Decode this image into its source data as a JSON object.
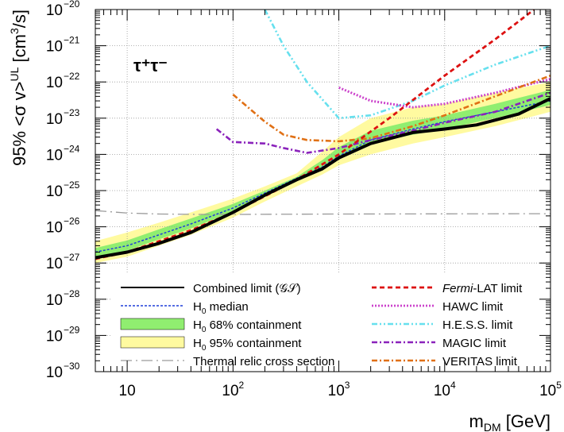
{
  "chart_data": {
    "type": "line",
    "title": "",
    "annotation": "τ⁺τ⁻",
    "xlabel": {
      "base": "m",
      "sub": "DM",
      "unit": "[GeV]"
    },
    "ylabel": {
      "prefix": "95% <σ v>",
      "sup": "UL",
      "unit_pre": "[cm",
      "unit_sup": "3",
      "unit_post": "/s]"
    },
    "xscale": "log",
    "yscale": "log",
    "xlim": [
      5,
      100000
    ],
    "ylim": [
      1e-30,
      1e-20
    ],
    "x_ticks": [
      {
        "value": 10,
        "base": "10",
        "exp": ""
      },
      {
        "value": 100,
        "base": "10",
        "exp": "2"
      },
      {
        "value": 1000,
        "base": "10",
        "exp": "3"
      },
      {
        "value": 10000,
        "base": "10",
        "exp": "4"
      },
      {
        "value": 100000,
        "base": "10",
        "exp": "5"
      }
    ],
    "y_ticks": [
      {
        "value": 1e-30,
        "base": "10",
        "exp": "−30"
      },
      {
        "value": 1e-29,
        "base": "10",
        "exp": "−29"
      },
      {
        "value": 1e-28,
        "base": "10",
        "exp": "−28"
      },
      {
        "value": 1e-27,
        "base": "10",
        "exp": "−27"
      },
      {
        "value": 1e-26,
        "base": "10",
        "exp": "−26"
      },
      {
        "value": 1e-25,
        "base": "10",
        "exp": "−25"
      },
      {
        "value": 1e-24,
        "base": "10",
        "exp": "−24"
      },
      {
        "value": 1e-23,
        "base": "10",
        "exp": "−23"
      },
      {
        "value": 1e-22,
        "base": "10",
        "exp": "−22"
      },
      {
        "value": 1e-21,
        "base": "10",
        "exp": "−21"
      },
      {
        "value": 1e-20,
        "base": "10",
        "exp": "−20"
      }
    ],
    "grid": true,
    "legend_position": "bottom",
    "legend": [
      {
        "key": "combined",
        "label": "Combined limit (𝒢𝒮)",
        "column": 0
      },
      {
        "key": "median",
        "label_base": "H",
        "label_sub": "0",
        "label_rest": " median",
        "column": 0
      },
      {
        "key": "band68",
        "label_base": "H",
        "label_sub": "0",
        "label_rest": " 68% containment",
        "column": 0
      },
      {
        "key": "band95",
        "label_base": "H",
        "label_sub": "0",
        "label_rest": " 95% containment",
        "column": 0
      },
      {
        "key": "thermal",
        "label": "Thermal relic cross section",
        "column": 0
      },
      {
        "key": "fermi",
        "label_italic": "Fermi",
        "label_rest": "-LAT limit",
        "column": 1
      },
      {
        "key": "hawc",
        "label": "HAWC limit",
        "column": 1
      },
      {
        "key": "hess",
        "label": "H.E.S.S. limit",
        "column": 1
      },
      {
        "key": "magic",
        "label": "MAGIC limit",
        "column": 1
      },
      {
        "key": "veritas",
        "label": "VERITAS limit",
        "column": 1
      }
    ],
    "styles": {
      "combined": {
        "color": "#000000",
        "width": 4,
        "dash": ""
      },
      "median": {
        "color": "#1f3fd8",
        "width": 1.5,
        "dash": "3,2"
      },
      "band68": {
        "color": "#90ee70"
      },
      "band95": {
        "color": "#fffaa0"
      },
      "thermal": {
        "color": "#9a9a9a",
        "width": 1.3,
        "dash": "14,5,2,5"
      },
      "fermi": {
        "color": "#dd1111",
        "width": 2.8,
        "dash": "6,4"
      },
      "hawc": {
        "color": "#cc44cc",
        "width": 3,
        "dash": "2,2"
      },
      "hess": {
        "color": "#66e0ee",
        "width": 2.6,
        "dash": "7,3,2,3,2,3"
      },
      "magic": {
        "color": "#8a22bb",
        "width": 2.6,
        "dash": "7,3,2,3"
      },
      "veritas": {
        "color": "#e07015",
        "width": 2.6,
        "dash": "7,3,2,3"
      }
    },
    "bands": {
      "band95": {
        "x": [
          5,
          10,
          20,
          40,
          100,
          200,
          400,
          700,
          1000,
          2000,
          5000,
          10000,
          30000,
          100000
        ],
        "lower": [
          1e-27,
          1.5e-27,
          3e-27,
          6e-27,
          1.8e-26,
          5e-26,
          1.3e-25,
          2.8e-25,
          5e-25,
          1e-24,
          2e-24,
          3e-24,
          6e-24,
          1.5e-23
        ],
        "upper": [
          4e-27,
          7e-27,
          1.3e-26,
          2.5e-26,
          6e-26,
          1.3e-25,
          3e-25,
          1.2e-24,
          3e-24,
          1e-23,
          2e-23,
          2.5e-23,
          5e-23,
          1e-22
        ]
      },
      "band68": {
        "x": [
          5,
          10,
          20,
          40,
          100,
          200,
          400,
          700,
          1000,
          2000,
          5000,
          10000,
          30000,
          100000
        ],
        "lower": [
          1.4e-27,
          2.2e-27,
          4.5e-27,
          9e-27,
          2.6e-26,
          7e-26,
          1.8e-25,
          4.5e-25,
          8e-25,
          2e-24,
          3.5e-24,
          5e-24,
          1e-23,
          2.3e-23
        ],
        "upper": [
          2.6e-27,
          4.2e-27,
          8.5e-27,
          1.7e-26,
          4.3e-26,
          1e-25,
          2.4e-25,
          7e-25,
          1.6e-24,
          4.5e-24,
          8.5e-24,
          1.2e-23,
          2.5e-23,
          6e-23
        ]
      }
    },
    "series": [
      {
        "key": "thermal",
        "x": [
          5,
          10,
          20,
          50,
          100,
          1000,
          100000
        ],
        "y": [
          2.8e-26,
          2.4e-26,
          2.25e-26,
          2.2e-26,
          2.2e-26,
          2.25e-26,
          2.3e-26
        ]
      },
      {
        "key": "median",
        "x": [
          5,
          10,
          20,
          40,
          100,
          200,
          400,
          700,
          1000,
          2000,
          5000,
          10000,
          30000,
          100000
        ],
        "y": [
          2e-27,
          3e-27,
          6e-27,
          1.2e-26,
          3.3e-26,
          8.5e-26,
          2.2e-25,
          4.5e-25,
          9e-25,
          2.5e-24,
          5e-24,
          8e-24,
          1.5e-23,
          3e-23
        ]
      },
      {
        "key": "hess",
        "x": [
          200,
          300,
          500,
          1000,
          2000,
          5000,
          10000,
          30000,
          100000
        ],
        "y": [
          1e-20,
          1e-21,
          1e-22,
          1e-23,
          1.2e-23,
          3e-23,
          8e-23,
          3e-22,
          1e-21
        ]
      },
      {
        "key": "hawc",
        "x": [
          1000,
          2000,
          5000,
          10000,
          30000,
          100000
        ],
        "y": [
          7e-23,
          3e-23,
          2e-23,
          2.5e-23,
          5e-23,
          1.2e-22
        ]
      },
      {
        "key": "magic",
        "x": [
          70,
          100,
          200,
          300,
          500,
          1000,
          2000,
          5000,
          10000,
          30000,
          100000
        ],
        "y": [
          5e-24,
          2.2e-24,
          2e-24,
          1.5e-24,
          1.1e-24,
          1.5e-24,
          2.5e-24,
          4.5e-24,
          7.5e-24,
          1.5e-23,
          5e-23
        ]
      },
      {
        "key": "veritas",
        "x": [
          100,
          200,
          300,
          500,
          1000,
          2000,
          5000,
          10000,
          30000,
          100000
        ],
        "y": [
          4.5e-23,
          8e-24,
          3.5e-24,
          2.5e-24,
          2.3e-24,
          2.8e-24,
          6e-24,
          1.2e-23,
          4e-23,
          1.5e-22
        ]
      },
      {
        "key": "fermi",
        "x": [
          5,
          10,
          20,
          40,
          100,
          200,
          400,
          1000,
          3000,
          10000,
          30000,
          70000
        ],
        "y": [
          1.3e-27,
          2e-27,
          4e-27,
          8e-27,
          2.5e-26,
          7e-26,
          2e-25,
          1e-24,
          1e-23,
          1.5e-22,
          1.5e-21,
          1e-20
        ]
      },
      {
        "key": "combined",
        "x": [
          5,
          10,
          20,
          40,
          100,
          200,
          400,
          700,
          1000,
          2000,
          5000,
          10000,
          20000,
          50000,
          100000
        ],
        "y": [
          1.4e-27,
          2e-27,
          3.5e-27,
          7e-27,
          2.5e-26,
          7.5e-26,
          2e-25,
          4e-25,
          8e-25,
          2e-24,
          4e-24,
          5e-24,
          6.5e-24,
          1.3e-23,
          3.5e-23
        ]
      }
    ]
  }
}
